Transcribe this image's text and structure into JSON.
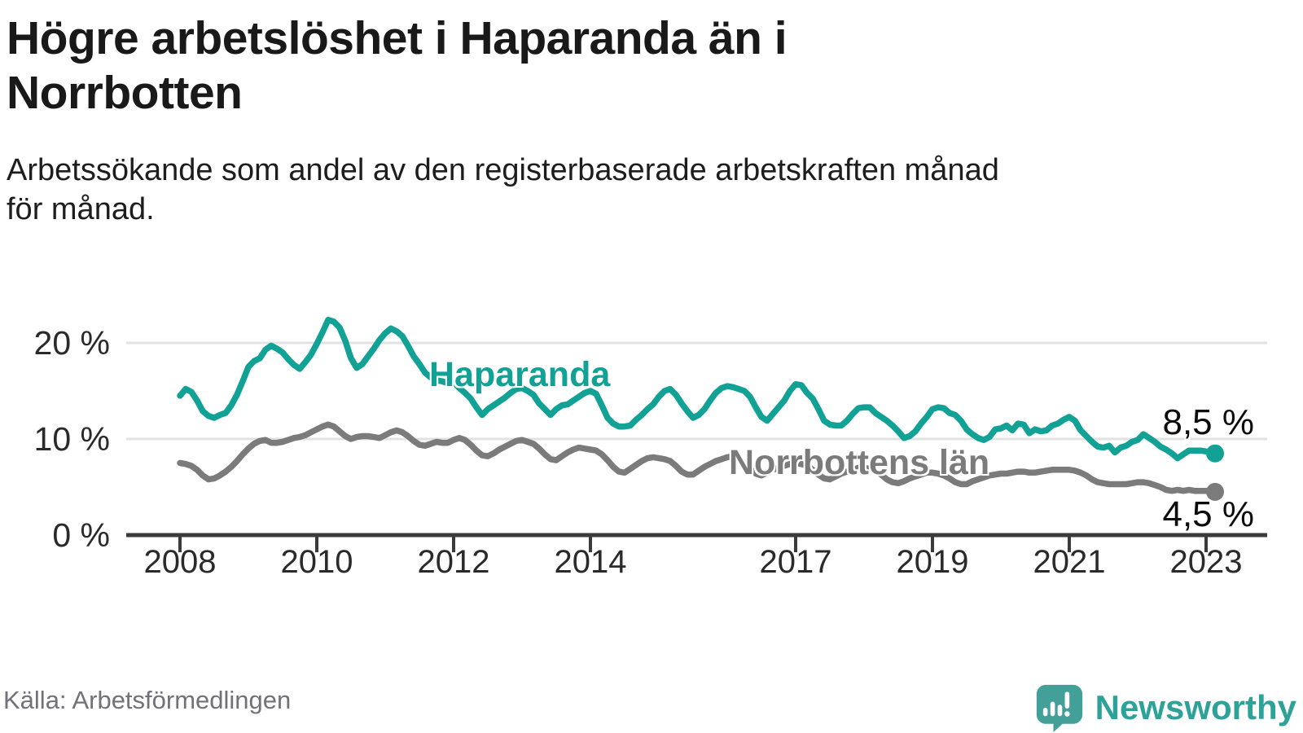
{
  "header": {
    "title": "Högre arbetslöshet i Haparanda än i\nNorrbotten",
    "subtitle": "Arbetssökande som andel av den registerbaserade arbetskraften månad\nför månad."
  },
  "footer": {
    "source": "Källa: Arbetsförmedlingen",
    "brand": "Newsworthy",
    "brand_color": "#2ca298",
    "brand_icon_color": "#42a098"
  },
  "chart_data": {
    "type": "line",
    "title": "Högre arbetslöshet i Haparanda än i Norrbotten",
    "unit": "%",
    "frequency": "monthly",
    "x_start": "2008-01",
    "x_end": "2023-02",
    "xlabel": "",
    "ylabel": "",
    "ylim": [
      0,
      23.5
    ],
    "grid": "horizontal",
    "legend_position": "inline-labels",
    "y_ticks": [
      {
        "value": 0,
        "label": "0 %"
      },
      {
        "value": 10,
        "label": "10 %"
      },
      {
        "value": 20,
        "label": "20 %"
      }
    ],
    "x_ticks": [
      {
        "year": 2008,
        "label": "2008"
      },
      {
        "year": 2010,
        "label": "2010"
      },
      {
        "year": 2012,
        "label": "2012"
      },
      {
        "year": 2014,
        "label": "2014"
      },
      {
        "year": 2017,
        "label": "2017"
      },
      {
        "year": 2019,
        "label": "2019"
      },
      {
        "year": 2021,
        "label": "2021"
      },
      {
        "year": 2023,
        "label": "2023"
      }
    ],
    "series": [
      {
        "name": "Haparanda",
        "color": "#12a195",
        "end_label": "8,5 %",
        "end_value": 8.5,
        "values": [
          14.5,
          15.2,
          14.9,
          14.0,
          12.9,
          12.4,
          12.2,
          12.5,
          12.7,
          13.5,
          14.6,
          16.0,
          17.5,
          18.1,
          18.4,
          19.3,
          19.7,
          19.4,
          19.0,
          18.3,
          17.7,
          17.3,
          18.0,
          18.8,
          19.9,
          21.1,
          22.4,
          22.2,
          21.6,
          20.2,
          18.4,
          17.4,
          17.8,
          18.6,
          19.4,
          20.3,
          21.0,
          21.5,
          21.2,
          20.7,
          19.7,
          18.6,
          17.8,
          16.9,
          16.4,
          16.1,
          16.0,
          15.8,
          15.9,
          15.3,
          14.8,
          14.2,
          13.3,
          12.5,
          13.1,
          13.5,
          13.9,
          14.3,
          14.8,
          15.2,
          15.3,
          15.0,
          14.6,
          13.7,
          13.1,
          12.5,
          13.1,
          13.5,
          13.6,
          14.0,
          14.4,
          14.8,
          15.0,
          14.7,
          13.5,
          12.2,
          11.6,
          11.3,
          11.3,
          11.4,
          12.0,
          12.5,
          13.1,
          13.6,
          14.4,
          15.0,
          15.2,
          14.6,
          13.7,
          12.9,
          12.2,
          12.5,
          13.1,
          14.0,
          14.8,
          15.3,
          15.5,
          15.4,
          15.2,
          15.0,
          14.4,
          13.3,
          12.3,
          11.9,
          12.6,
          13.3,
          14.0,
          15.0,
          15.7,
          15.6,
          14.8,
          14.2,
          13.1,
          11.9,
          11.5,
          11.4,
          11.4,
          11.9,
          12.6,
          13.2,
          13.3,
          13.3,
          12.7,
          12.3,
          11.9,
          11.4,
          10.8,
          10.1,
          10.3,
          10.8,
          11.6,
          12.3,
          13.1,
          13.3,
          13.2,
          12.7,
          12.5,
          11.9,
          11.0,
          10.5,
          10.1,
          9.9,
          10.2,
          11.0,
          11.1,
          11.4,
          10.9,
          11.6,
          11.5,
          10.6,
          11.0,
          10.8,
          10.9,
          11.4,
          11.6,
          12.0,
          12.3,
          11.9,
          10.9,
          10.3,
          9.7,
          9.2,
          9.1,
          9.3,
          8.6,
          9.1,
          9.3,
          9.7,
          9.9,
          10.5,
          10.1,
          9.7,
          9.2,
          8.9,
          8.5,
          8.0,
          8.4,
          8.8,
          8.8,
          8.8,
          8.7,
          8.5
        ]
      },
      {
        "name": "Norrbottens län",
        "color": "#7b7b7b",
        "end_label": "4,5 %",
        "end_value": 4.5,
        "values": [
          7.5,
          7.4,
          7.2,
          6.8,
          6.2,
          5.8,
          5.9,
          6.2,
          6.6,
          7.1,
          7.7,
          8.4,
          9.0,
          9.5,
          9.8,
          9.9,
          9.6,
          9.6,
          9.7,
          9.9,
          10.1,
          10.2,
          10.4,
          10.7,
          11.0,
          11.3,
          11.5,
          11.3,
          10.8,
          10.3,
          10.0,
          10.2,
          10.3,
          10.3,
          10.2,
          10.1,
          10.4,
          10.7,
          10.9,
          10.7,
          10.3,
          9.8,
          9.4,
          9.3,
          9.5,
          9.7,
          9.6,
          9.6,
          9.9,
          10.1,
          9.9,
          9.4,
          8.8,
          8.3,
          8.2,
          8.5,
          8.9,
          9.2,
          9.5,
          9.8,
          9.9,
          9.7,
          9.5,
          9.0,
          8.4,
          7.9,
          7.8,
          8.2,
          8.6,
          8.9,
          9.1,
          9.0,
          8.9,
          8.8,
          8.4,
          7.8,
          7.1,
          6.6,
          6.5,
          6.9,
          7.3,
          7.7,
          8.0,
          8.1,
          8.0,
          7.9,
          7.7,
          7.2,
          6.6,
          6.3,
          6.3,
          6.7,
          7.1,
          7.4,
          7.7,
          7.9,
          8.1,
          8.2,
          8.0,
          7.5,
          6.9,
          6.4,
          6.2,
          6.5,
          6.8,
          7.0,
          7.2,
          7.4,
          7.5,
          7.4,
          7.2,
          6.8,
          6.3,
          5.9,
          5.8,
          6.1,
          6.4,
          6.6,
          6.8,
          7.0,
          7.0,
          6.9,
          6.7,
          6.3,
          5.8,
          5.5,
          5.4,
          5.6,
          5.9,
          6.1,
          6.3,
          6.5,
          6.5,
          6.4,
          6.2,
          5.9,
          5.5,
          5.3,
          5.3,
          5.6,
          5.8,
          6.0,
          6.2,
          6.3,
          6.4,
          6.4,
          6.5,
          6.6,
          6.6,
          6.5,
          6.5,
          6.6,
          6.7,
          6.8,
          6.8,
          6.8,
          6.8,
          6.7,
          6.5,
          6.2,
          5.8,
          5.5,
          5.4,
          5.3,
          5.3,
          5.3,
          5.3,
          5.4,
          5.5,
          5.5,
          5.4,
          5.2,
          5.0,
          4.7,
          4.6,
          4.7,
          4.6,
          4.7,
          4.6,
          4.6,
          4.6,
          4.5
        ]
      }
    ]
  }
}
